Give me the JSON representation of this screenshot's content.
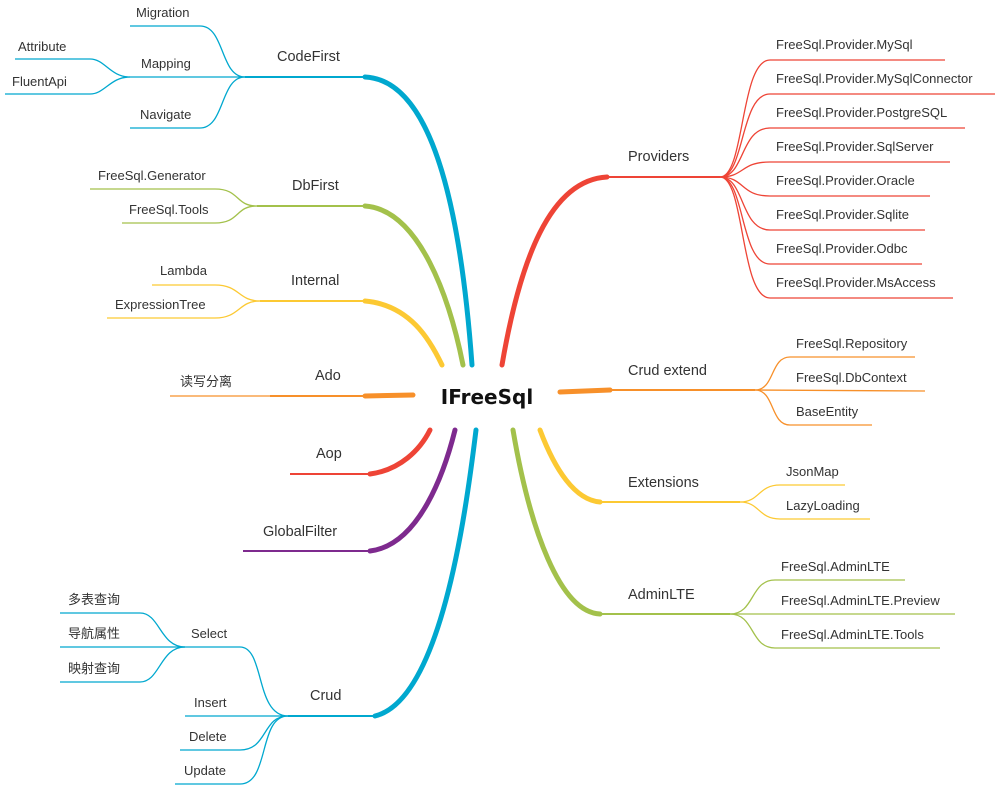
{
  "root": {
    "label": "IFreeSql"
  },
  "colors": {
    "cyan": "#00a8cf",
    "green": "#a3c14b",
    "yellow": "#fcc933",
    "orange": "#f7902a",
    "red": "#ee4436",
    "purple": "#7e2a8e"
  },
  "left": {
    "codefirst": {
      "label": "CodeFirst",
      "children": [
        "Migration",
        "Mapping",
        "Navigate"
      ],
      "mapping_children": [
        "Attribute",
        "FluentApi"
      ]
    },
    "dbfirst": {
      "label": "DbFirst",
      "children": [
        "FreeSql.Generator",
        "FreeSql.Tools"
      ]
    },
    "internal": {
      "label": "Internal",
      "children": [
        "Lambda",
        "ExpressionTree"
      ]
    },
    "ado": {
      "label": "Ado",
      "children": [
        "读写分离"
      ]
    },
    "aop": {
      "label": "Aop"
    },
    "globalfilter": {
      "label": "GlobalFilter"
    },
    "crud": {
      "label": "Crud",
      "children": [
        "Select",
        "Insert",
        "Delete",
        "Update"
      ],
      "select_children": [
        "多表查询",
        "导航属性",
        "映射查询"
      ]
    }
  },
  "right": {
    "providers": {
      "label": "Providers",
      "children": [
        "FreeSql.Provider.MySql",
        "FreeSql.Provider.MySqlConnector",
        "FreeSql.Provider.PostgreSQL",
        "FreeSql.Provider.SqlServer",
        "FreeSql.Provider.Oracle",
        "FreeSql.Provider.Sqlite",
        "FreeSql.Provider.Odbc",
        "FreeSql.Provider.MsAccess"
      ]
    },
    "crudextend": {
      "label": "Crud extend",
      "children": [
        "FreeSql.Repository",
        "FreeSql.DbContext",
        "BaseEntity"
      ]
    },
    "extensions": {
      "label": "Extensions",
      "children": [
        "JsonMap",
        "LazyLoading"
      ]
    },
    "adminlte": {
      "label": "AdminLTE",
      "children": [
        "FreeSql.AdminLTE",
        "FreeSql.AdminLTE.Preview",
        "FreeSql.AdminLTE.Tools"
      ]
    }
  }
}
